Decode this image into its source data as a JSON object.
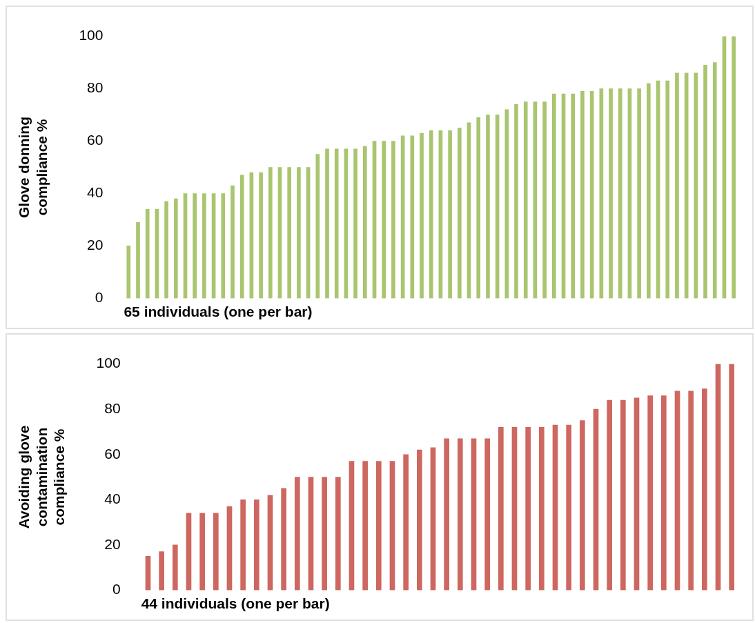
{
  "chart_data": [
    {
      "type": "bar",
      "categories": [
        null,
        null,
        null,
        null,
        null,
        null,
        null,
        null,
        null,
        null,
        null,
        null,
        null,
        null,
        null,
        null,
        null,
        null,
        null,
        null,
        null,
        null,
        null,
        null,
        null,
        null,
        null,
        null,
        null,
        null,
        null,
        null,
        null,
        null,
        null,
        null,
        null,
        null,
        null,
        null,
        null,
        null,
        null,
        null,
        null,
        null,
        null,
        null,
        null,
        null,
        null,
        null,
        null,
        null,
        null,
        null,
        null,
        null,
        null,
        null,
        null,
        null,
        null,
        null,
        null
      ],
      "values": [
        20,
        29,
        34,
        34,
        37,
        38,
        40,
        40,
        40,
        40,
        40,
        43,
        47,
        48,
        48,
        50,
        50,
        50,
        50,
        50,
        55,
        57,
        57,
        57,
        57,
        58,
        60,
        60,
        60,
        62,
        62,
        63,
        64,
        64,
        64,
        65,
        67,
        69,
        70,
        70,
        72,
        74,
        75,
        75,
        75,
        78,
        78,
        78,
        79,
        79,
        80,
        80,
        80,
        80,
        80,
        82,
        83,
        83,
        86,
        86,
        86,
        89,
        90,
        100,
        100
      ],
      "color": "#a9c56f",
      "ylabel": "Glove donning compliance %",
      "xlabel": "65 individuals (one per bar)",
      "ylim": [
        0,
        100
      ],
      "yticks": [
        0,
        20,
        40,
        60,
        80,
        100
      ],
      "grid": false,
      "legend": false,
      "tick_labels": "y"
    },
    {
      "type": "bar",
      "categories": [
        null,
        null,
        null,
        null,
        null,
        null,
        null,
        null,
        null,
        null,
        null,
        null,
        null,
        null,
        null,
        null,
        null,
        null,
        null,
        null,
        null,
        null,
        null,
        null,
        null,
        null,
        null,
        null,
        null,
        null,
        null,
        null,
        null,
        null,
        null,
        null,
        null,
        null,
        null,
        null,
        null,
        null,
        null,
        null
      ],
      "values": [
        15,
        17,
        20,
        34,
        34,
        34,
        37,
        40,
        40,
        42,
        45,
        50,
        50,
        50,
        50,
        57,
        57,
        57,
        57,
        60,
        62,
        63,
        67,
        67,
        67,
        67,
        72,
        72,
        72,
        72,
        73,
        73,
        75,
        80,
        84,
        84,
        85,
        86,
        86,
        88,
        88,
        89,
        100,
        100
      ],
      "color": "#cd6760",
      "ylabel": "Avoiding glove contamination compliance %",
      "xlabel": "44 individuals (one per bar)",
      "ylim": [
        0,
        100
      ],
      "yticks": [
        0,
        20,
        40,
        60,
        80,
        100
      ],
      "grid": false,
      "legend": false,
      "tick_labels": "y"
    }
  ]
}
